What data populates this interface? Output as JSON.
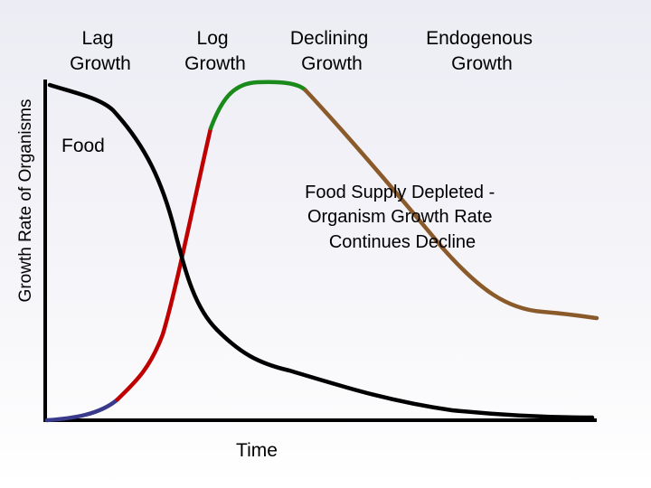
{
  "phases": [
    {
      "lines": [
        "Lag",
        "Growth"
      ],
      "color": "#3a3a8c"
    },
    {
      "lines": [
        "Log",
        "Growth"
      ],
      "color": "#c00000"
    },
    {
      "lines": [
        "Declining",
        "Growth"
      ],
      "color": "#1a8a1a"
    },
    {
      "lines": [
        "Endogenous",
        "Growth"
      ],
      "color": "#8b5a2b"
    }
  ],
  "y_axis_label": "Growth Rate of Organisms",
  "x_axis_label": "Time",
  "food_label": "Food",
  "annotation": [
    "Food Supply Depleted -",
    "Organism Growth Rate",
    "Continues Decline"
  ],
  "food_curve_color": "#000000"
}
